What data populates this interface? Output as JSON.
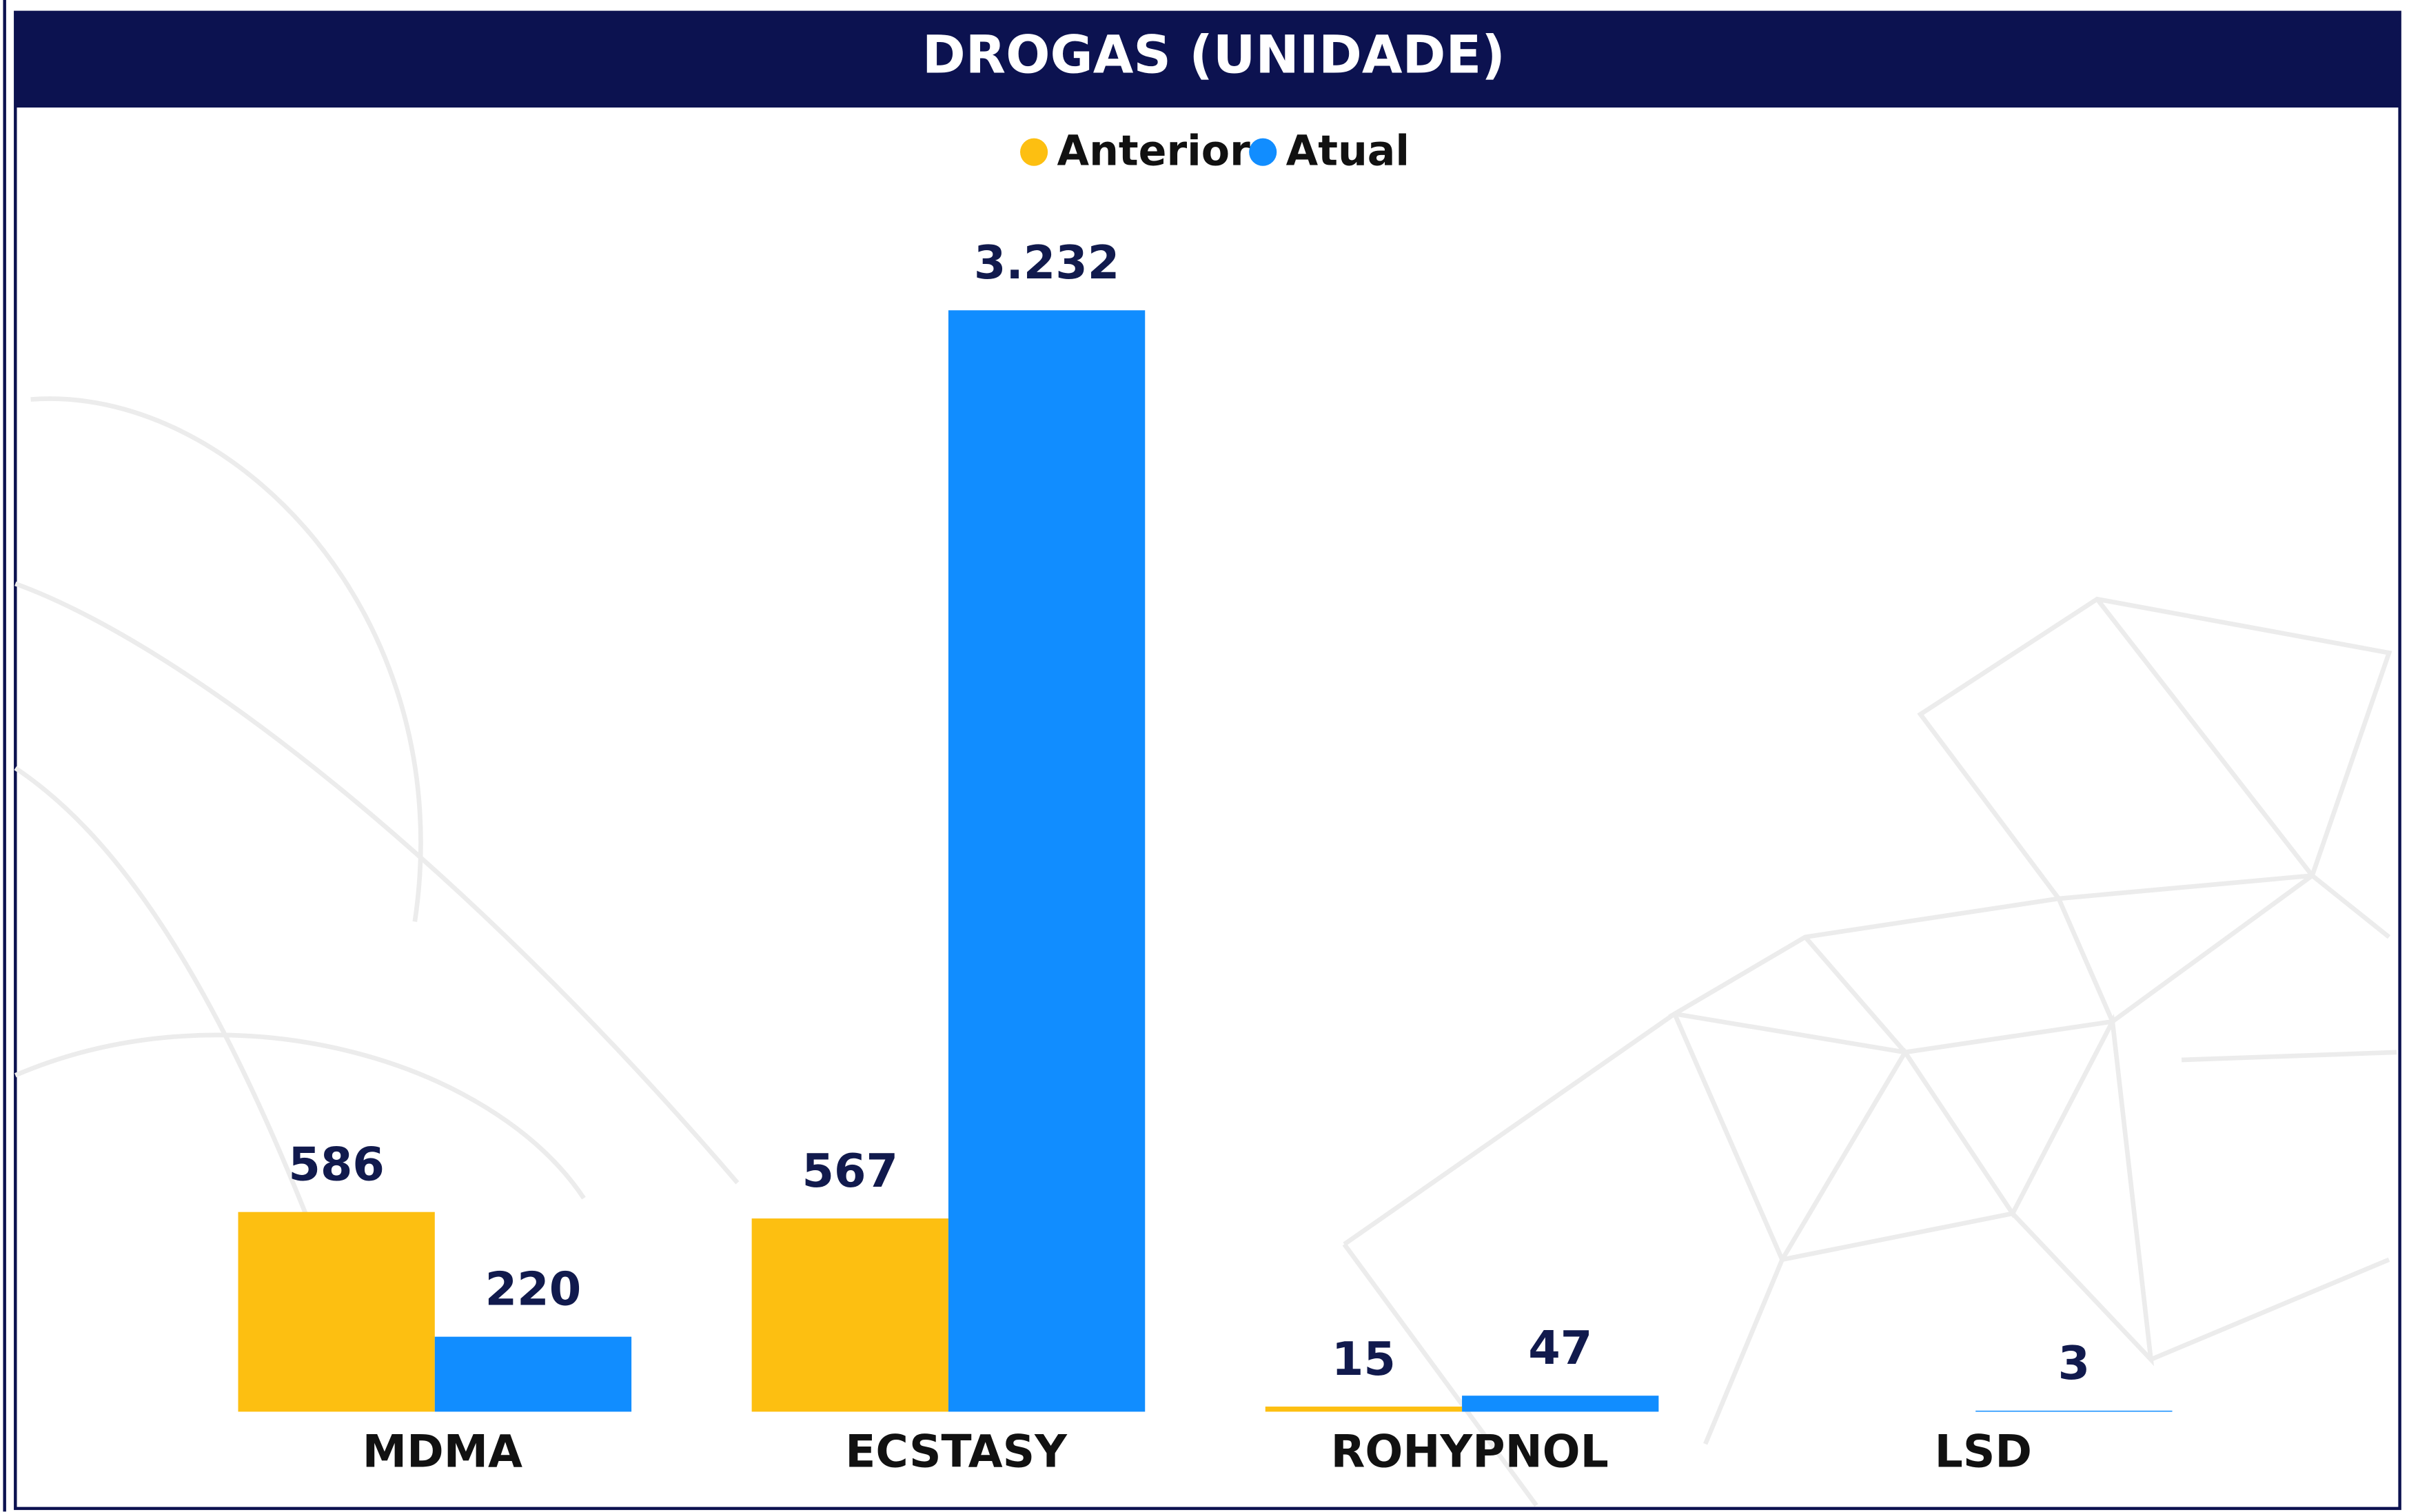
{
  "chart_data": {
    "type": "bar",
    "title": "DROGAS (UNIDADE)",
    "categories": [
      "MDMA",
      "ECSTASY",
      "ROHYPNOL",
      "LSD"
    ],
    "series": [
      {
        "name": "Anterior",
        "color": "#fdbf11",
        "values": [
          586,
          567,
          15,
          null
        ]
      },
      {
        "name": "Atual",
        "color": "#118dff",
        "values": [
          220,
          3232,
          47,
          3
        ],
        "value_labels": [
          "220",
          "3.232",
          "47",
          "3"
        ]
      }
    ],
    "legend": "top"
  }
}
